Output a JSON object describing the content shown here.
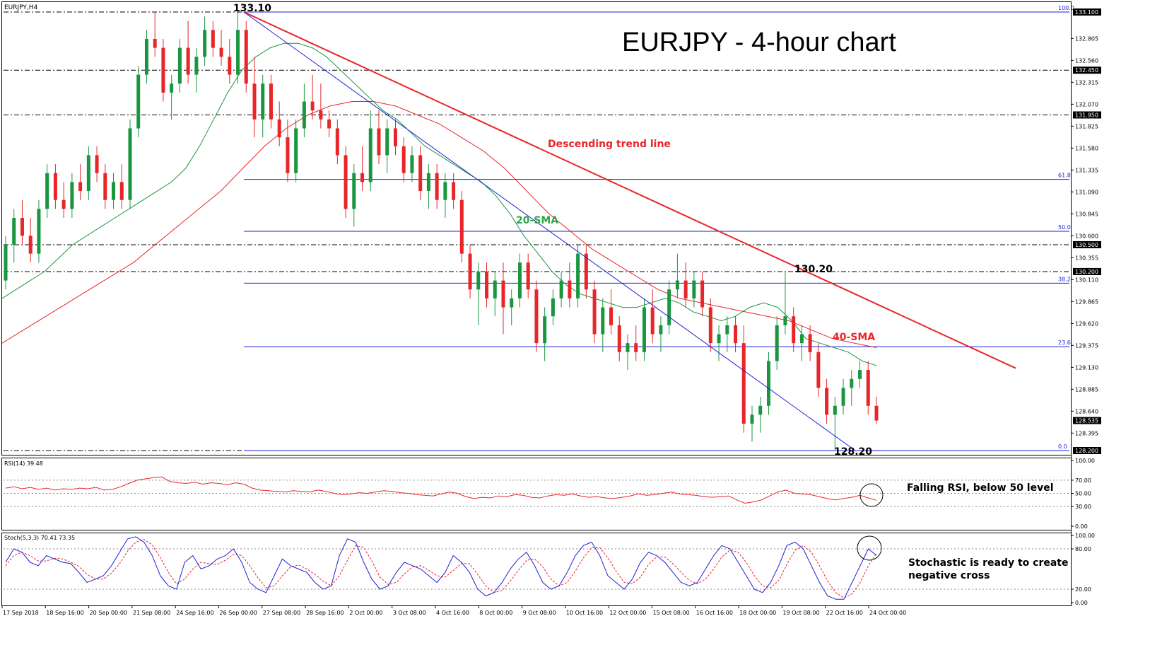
{
  "chart_data": {
    "type": "candlestick",
    "symbol_label": "EURJPY,H4",
    "title": "EURJPY - 4-hour chart",
    "price_axis": {
      "range": [
        128.2,
        133.1
      ],
      "ticks": [
        "132.805",
        "132.560",
        "132.315",
        "132.070",
        "131.825",
        "131.580",
        "131.335",
        "131.090",
        "130.845",
        "130.600",
        "130.355",
        "130.110",
        "129.865",
        "129.620",
        "129.375",
        "129.130",
        "128.885",
        "128.640",
        "128.395"
      ]
    },
    "horizontal_levels": [
      {
        "value": 133.1,
        "label": "133.100",
        "style": "dash-dot"
      },
      {
        "value": 132.45,
        "label": "132.450",
        "style": "dash-dot"
      },
      {
        "value": 131.95,
        "label": "131.950",
        "style": "dash-dot"
      },
      {
        "value": 130.5,
        "label": "130.500",
        "style": "dash-dot"
      },
      {
        "value": 130.2,
        "label": "130.200",
        "style": "dash-dot"
      },
      {
        "value": 128.2,
        "label": "128.200",
        "style": "dash-dot"
      }
    ],
    "current_price": {
      "value": 128.535,
      "label": "128.535"
    },
    "fibonacci": [
      {
        "level": "100.0",
        "value": 133.1
      },
      {
        "level": "61.8",
        "value": 131.23
      },
      {
        "level": "50.0",
        "value": 130.65
      },
      {
        "level": "38.2",
        "value": 130.07
      },
      {
        "level": "23.6",
        "value": 129.36
      },
      {
        "level": "0.0",
        "value": 128.2
      }
    ],
    "annotations": {
      "high": "133.10",
      "low": "128.20",
      "swing": "130.20",
      "trend_line": "Descending trend line",
      "sma20": "20-SMA",
      "sma40": "40-SMA",
      "rsi_note": "Falling RSI, below 50 level",
      "stoch_note_line1": "Stochastic is ready to create",
      "stoch_note_line2": "negative cross"
    },
    "x_labels": [
      "17 Sep 2018",
      "18 Sep 16:00",
      "20 Sep 00:00",
      "21 Sep 08:00",
      "24 Sep 16:00",
      "26 Sep 00:00",
      "27 Sep 08:00",
      "28 Sep 16:00",
      "2 Oct 00:00",
      "3 Oct 08:00",
      "4 Oct 16:00",
      "8 Oct 00:00",
      "9 Oct 08:00",
      "10 Oct 16:00",
      "12 Oct 00:00",
      "15 Oct 08:00",
      "16 Oct 16:00",
      "18 Oct 00:00",
      "19 Oct 08:00",
      "22 Oct 16:00",
      "24 Oct 00:00"
    ],
    "candles": [
      [
        130.1,
        130.6,
        130.0,
        130.5
      ],
      [
        130.5,
        130.9,
        130.3,
        130.8
      ],
      [
        130.8,
        131.0,
        130.5,
        130.6
      ],
      [
        130.6,
        130.8,
        130.3,
        130.4
      ],
      [
        130.4,
        131.0,
        130.3,
        130.9
      ],
      [
        130.9,
        131.4,
        130.8,
        131.3
      ],
      [
        131.3,
        131.4,
        130.9,
        131.0
      ],
      [
        131.0,
        131.2,
        130.8,
        130.9
      ],
      [
        130.9,
        131.3,
        130.8,
        131.2
      ],
      [
        131.2,
        131.4,
        131.0,
        131.1
      ],
      [
        131.1,
        131.6,
        131.0,
        131.5
      ],
      [
        131.5,
        131.6,
        131.2,
        131.3
      ],
      [
        131.3,
        131.4,
        130.9,
        131.0
      ],
      [
        131.0,
        131.3,
        130.9,
        131.2
      ],
      [
        131.2,
        131.4,
        130.9,
        131.0
      ],
      [
        131.0,
        131.9,
        130.9,
        131.8
      ],
      [
        131.8,
        132.5,
        131.7,
        132.4
      ],
      [
        132.4,
        132.9,
        132.3,
        132.8
      ],
      [
        132.8,
        133.1,
        132.6,
        132.7
      ],
      [
        132.7,
        132.8,
        132.1,
        132.2
      ],
      [
        132.2,
        132.4,
        131.9,
        132.3
      ],
      [
        132.3,
        132.8,
        132.2,
        132.7
      ],
      [
        132.7,
        133.0,
        132.3,
        132.4
      ],
      [
        132.4,
        132.7,
        132.2,
        132.6
      ],
      [
        132.6,
        133.05,
        132.5,
        132.9
      ],
      [
        132.9,
        133.0,
        132.6,
        132.7
      ],
      [
        132.7,
        132.9,
        132.5,
        132.6
      ],
      [
        132.6,
        132.8,
        132.3,
        132.4
      ],
      [
        132.4,
        133.1,
        132.3,
        132.9
      ],
      [
        132.9,
        133.0,
        132.2,
        132.3
      ],
      [
        132.3,
        132.6,
        131.7,
        131.9
      ],
      [
        131.9,
        132.4,
        131.7,
        132.3
      ],
      [
        132.3,
        132.4,
        131.8,
        131.9
      ],
      [
        131.9,
        132.1,
        131.6,
        131.7
      ],
      [
        131.7,
        131.9,
        131.2,
        131.3
      ],
      [
        131.3,
        131.9,
        131.2,
        131.8
      ],
      [
        131.8,
        132.3,
        131.7,
        132.1
      ],
      [
        132.1,
        132.4,
        131.9,
        132.0
      ],
      [
        132.0,
        132.3,
        131.8,
        131.9
      ],
      [
        131.9,
        132.0,
        131.7,
        131.8
      ],
      [
        131.8,
        131.9,
        131.4,
        131.5
      ],
      [
        131.5,
        131.6,
        130.8,
        130.9
      ],
      [
        130.9,
        131.4,
        130.7,
        131.3
      ],
      [
        131.3,
        131.6,
        131.1,
        131.2
      ],
      [
        131.2,
        132.0,
        131.1,
        131.8
      ],
      [
        131.8,
        132.0,
        131.4,
        131.5
      ],
      [
        131.5,
        131.9,
        131.3,
        131.8
      ],
      [
        131.8,
        131.9,
        131.5,
        131.6
      ],
      [
        131.6,
        131.7,
        131.2,
        131.3
      ],
      [
        131.3,
        131.6,
        131.2,
        131.5
      ],
      [
        131.5,
        131.6,
        131.0,
        131.1
      ],
      [
        131.1,
        131.4,
        130.9,
        131.3
      ],
      [
        131.3,
        131.4,
        130.9,
        131.0
      ],
      [
        131.0,
        131.3,
        130.8,
        131.2
      ],
      [
        131.2,
        131.3,
        130.9,
        131.0
      ],
      [
        131.0,
        131.1,
        130.3,
        130.4
      ],
      [
        130.4,
        130.5,
        129.9,
        130.0
      ],
      [
        130.0,
        130.3,
        129.6,
        130.2
      ],
      [
        130.2,
        130.3,
        129.8,
        129.9
      ],
      [
        129.9,
        130.2,
        129.7,
        130.1
      ],
      [
        130.1,
        130.3,
        129.5,
        129.8
      ],
      [
        129.8,
        130.0,
        129.6,
        129.9
      ],
      [
        129.9,
        130.4,
        129.8,
        130.3
      ],
      [
        130.3,
        130.4,
        129.9,
        130.0
      ],
      [
        130.0,
        130.1,
        129.3,
        129.4
      ],
      [
        129.4,
        129.8,
        129.2,
        129.7
      ],
      [
        129.7,
        130.0,
        129.6,
        129.9
      ],
      [
        129.9,
        130.2,
        129.8,
        130.1
      ],
      [
        130.1,
        130.3,
        129.8,
        129.9
      ],
      [
        129.9,
        130.5,
        129.8,
        130.4
      ],
      [
        130.4,
        130.5,
        129.9,
        130.0
      ],
      [
        130.0,
        130.1,
        129.4,
        129.5
      ],
      [
        129.5,
        129.9,
        129.3,
        129.8
      ],
      [
        129.8,
        130.0,
        129.5,
        129.6
      ],
      [
        129.6,
        129.7,
        129.2,
        129.3
      ],
      [
        129.3,
        129.5,
        129.1,
        129.4
      ],
      [
        129.4,
        129.6,
        129.2,
        129.3
      ],
      [
        129.3,
        129.9,
        129.2,
        129.8
      ],
      [
        129.8,
        130.0,
        129.4,
        129.5
      ],
      [
        129.5,
        129.7,
        129.3,
        129.6
      ],
      [
        129.6,
        130.1,
        129.5,
        130.0
      ],
      [
        130.0,
        130.4,
        129.9,
        130.1
      ],
      [
        130.1,
        130.3,
        129.8,
        129.9
      ],
      [
        129.9,
        130.2,
        129.8,
        130.1
      ],
      [
        130.1,
        130.2,
        129.7,
        129.8
      ],
      [
        129.8,
        129.9,
        129.3,
        129.4
      ],
      [
        129.4,
        129.6,
        129.2,
        129.5
      ],
      [
        129.5,
        129.7,
        129.3,
        129.6
      ],
      [
        129.6,
        129.7,
        129.3,
        129.4
      ],
      [
        129.4,
        129.6,
        128.4,
        128.5
      ],
      [
        128.5,
        128.7,
        128.3,
        128.6
      ],
      [
        128.6,
        128.8,
        128.4,
        128.7
      ],
      [
        128.7,
        129.3,
        128.6,
        129.2
      ],
      [
        129.2,
        129.7,
        129.1,
        129.6
      ],
      [
        129.6,
        130.2,
        129.5,
        129.7
      ],
      [
        129.7,
        129.8,
        129.3,
        129.4
      ],
      [
        129.4,
        129.6,
        129.2,
        129.5
      ],
      [
        129.5,
        129.6,
        129.2,
        129.3
      ],
      [
        129.3,
        129.4,
        128.8,
        128.9
      ],
      [
        128.9,
        129.0,
        128.5,
        128.6
      ],
      [
        128.6,
        128.8,
        128.2,
        128.7
      ],
      [
        128.7,
        129.0,
        128.6,
        128.9
      ],
      [
        128.9,
        129.1,
        128.7,
        129.0
      ],
      [
        129.0,
        129.2,
        128.9,
        129.1
      ],
      [
        129.1,
        129.2,
        128.6,
        128.7
      ],
      [
        128.7,
        128.8,
        128.5,
        128.535
      ]
    ],
    "sma20_values": [
      129.9,
      130.0,
      130.1,
      130.2,
      130.35,
      130.5,
      130.6,
      130.7,
      130.8,
      130.9,
      131.0,
      131.1,
      131.2,
      131.35,
      131.6,
      131.9,
      132.2,
      132.45,
      132.6,
      132.7,
      132.75,
      132.75,
      132.7,
      132.6,
      132.45,
      132.3,
      132.15,
      132.0,
      131.9,
      131.75,
      131.6,
      131.5,
      131.4,
      131.3,
      131.2,
      131.05,
      130.85,
      130.6,
      130.4,
      130.2,
      130.05,
      129.95,
      129.9,
      129.85,
      129.8,
      129.8,
      129.85,
      129.9,
      129.85,
      129.75,
      129.7,
      129.65,
      129.7,
      129.8,
      129.85,
      129.8,
      129.65,
      129.45,
      129.4,
      129.35,
      129.3,
      129.2,
      129.15
    ],
    "sma40_values": [
      129.4,
      129.55,
      129.7,
      129.85,
      130.0,
      130.15,
      130.3,
      130.5,
      130.7,
      130.9,
      131.1,
      131.35,
      131.6,
      131.8,
      131.95,
      132.05,
      132.1,
      132.1,
      132.05,
      131.95,
      131.85,
      131.7,
      131.55,
      131.35,
      131.1,
      130.85,
      130.65,
      130.45,
      130.3,
      130.15,
      130.0,
      129.9,
      129.85,
      129.8,
      129.75,
      129.7,
      129.65,
      129.55,
      129.45,
      129.4,
      129.35
    ],
    "rsi": {
      "label": "RSI(14) 39.48",
      "ticks": [
        "100.00",
        "70.00",
        "50.00",
        "30.00",
        "0.00"
      ],
      "range": [
        0,
        100
      ],
      "values": [
        58,
        60,
        57,
        59,
        56,
        58,
        55,
        57,
        56,
        58,
        57,
        59,
        55,
        56,
        60,
        65,
        70,
        72,
        74,
        75,
        68,
        66,
        65,
        67,
        64,
        66,
        65,
        63,
        66,
        64,
        58,
        55,
        54,
        53,
        52,
        54,
        53,
        52,
        55,
        53,
        50,
        48,
        49,
        51,
        50,
        52,
        54,
        53,
        51,
        50,
        48,
        47,
        46,
        49,
        52,
        50,
        45,
        42,
        44,
        43,
        46,
        45,
        48,
        47,
        44,
        43,
        46,
        48,
        47,
        49,
        46,
        44,
        45,
        43,
        42,
        44,
        46,
        49,
        47,
        48,
        50,
        52,
        49,
        48,
        47,
        45,
        44,
        45,
        46,
        40,
        35,
        37,
        40,
        46,
        52,
        55,
        50,
        49,
        48,
        45,
        42,
        40,
        42,
        44,
        47,
        43,
        39.48
      ]
    },
    "stoch": {
      "label": "Stoch(5,3,3) 70.41 73.35",
      "ticks": [
        "100.00",
        "80.00",
        "20.00",
        "0.00"
      ],
      "range": [
        0,
        100
      ],
      "k": [
        60,
        80,
        75,
        60,
        55,
        70,
        65,
        60,
        58,
        45,
        30,
        35,
        40,
        55,
        75,
        95,
        98,
        90,
        70,
        40,
        25,
        20,
        60,
        70,
        50,
        55,
        65,
        70,
        80,
        60,
        30,
        20,
        15,
        40,
        65,
        55,
        50,
        45,
        30,
        20,
        25,
        70,
        95,
        90,
        60,
        35,
        20,
        25,
        45,
        60,
        55,
        50,
        40,
        30,
        45,
        70,
        60,
        45,
        20,
        10,
        15,
        30,
        50,
        65,
        75,
        55,
        30,
        20,
        25,
        45,
        70,
        85,
        90,
        70,
        40,
        30,
        20,
        35,
        60,
        75,
        70,
        60,
        45,
        30,
        25,
        30,
        50,
        70,
        85,
        80,
        60,
        40,
        20,
        15,
        30,
        55,
        85,
        90,
        80,
        55,
        30,
        10,
        5,
        5,
        30,
        55,
        80,
        70.41
      ],
      "d": [
        55,
        70,
        75,
        70,
        62,
        62,
        66,
        65,
        60,
        54,
        42,
        35,
        35,
        44,
        58,
        77,
        90,
        94,
        86,
        67,
        45,
        28,
        35,
        50,
        60,
        58,
        57,
        63,
        72,
        70,
        55,
        37,
        22,
        25,
        40,
        53,
        56,
        50,
        42,
        32,
        25,
        40,
        63,
        85,
        82,
        62,
        38,
        27,
        30,
        43,
        53,
        55,
        48,
        40,
        38,
        48,
        58,
        58,
        42,
        25,
        15,
        18,
        32,
        48,
        63,
        65,
        53,
        35,
        25,
        30,
        47,
        67,
        82,
        82,
        67,
        47,
        30,
        28,
        38,
        57,
        68,
        68,
        58,
        45,
        33,
        28,
        35,
        50,
        68,
        78,
        75,
        60,
        40,
        25,
        22,
        33,
        57,
        78,
        85,
        75,
        55,
        32,
        15,
        7,
        13,
        30,
        55,
        73.35
      ]
    }
  }
}
